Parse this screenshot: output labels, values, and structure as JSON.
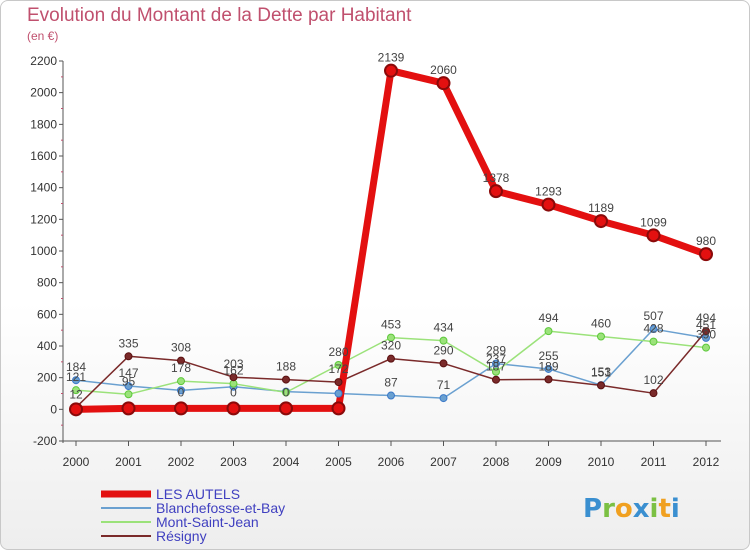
{
  "title": "Evolution du Montant de la Dette par Habitant",
  "subtitle": "(en €)",
  "logo": {
    "letters": [
      "P",
      "r",
      "o",
      "x",
      "i",
      "t",
      "i"
    ],
    "colors": [
      "#3a8fd0",
      "#7bc043",
      "#f0a020",
      "#3a8fd0",
      "#7bc043",
      "#f0a020",
      "#3a8fd0"
    ]
  },
  "chart_data": {
    "type": "line",
    "x": [
      "2000",
      "2001",
      "2002",
      "2003",
      "2004",
      "2005",
      "2006",
      "2007",
      "2008",
      "2009",
      "2010",
      "2011",
      "2012"
    ],
    "ylim": [
      -200,
      2200
    ],
    "yticks": [
      "-200",
      "0",
      "200",
      "400",
      "600",
      "800",
      "1000",
      "1200",
      "1400",
      "1600",
      "1800",
      "2000",
      "2200"
    ],
    "grid": false,
    "legend": "bottom-left",
    "series": [
      {
        "name": "LES AUTELS",
        "color": "#e31010",
        "width": 7,
        "markerColor": "#8a0a0a",
        "values": [
          0,
          6,
          6,
          6,
          6,
          6,
          2139,
          2060,
          1378,
          1293,
          1189,
          1099,
          980
        ],
        "labels": [
          "",
          "",
          "",
          "",
          "",
          "",
          "2139",
          "2060",
          "1378",
          "1293",
          "1189",
          "1099",
          "980"
        ]
      },
      {
        "name": "Blanchefosse-et-Bay",
        "color": "#6aa0d0",
        "width": 1.5,
        "markerColor": "#3a78c8",
        "values": [
          184,
          147,
          120,
          143,
          112,
          100,
          87,
          71,
          289,
          255,
          153,
          507,
          451
        ],
        "labels": [
          "184",
          "147",
          "",
          "",
          "",
          "",
          "87",
          "71",
          "289",
          "255",
          "153",
          "507",
          "451"
        ]
      },
      {
        "name": "Mont-Saint-Jean",
        "color": "#9be27a",
        "width": 1.5,
        "markerColor": "#5cc83a",
        "values": [
          121,
          95,
          178,
          162,
          107,
          280,
          453,
          434,
          237,
          494,
          460,
          428,
          390
        ],
        "labels": [
          "121",
          "95",
          "178",
          "162",
          "",
          "280",
          "453",
          "434",
          "237",
          "494",
          "460",
          "428",
          "390"
        ]
      },
      {
        "name": "Résigny",
        "color": "#7a2a2a",
        "width": 1.5,
        "markerColor": "#5a1010",
        "values": [
          12,
          335,
          308,
          203,
          188,
          172,
          320,
          290,
          187,
          189,
          151,
          102,
          494
        ],
        "labels": [
          "12",
          "335",
          "308",
          "203",
          "188",
          "172",
          "320",
          "290",
          "187",
          "189",
          "151",
          "102",
          "494"
        ]
      }
    ],
    "other_labels": [
      "0",
      "0",
      "0",
      "0",
      "0"
    ]
  }
}
